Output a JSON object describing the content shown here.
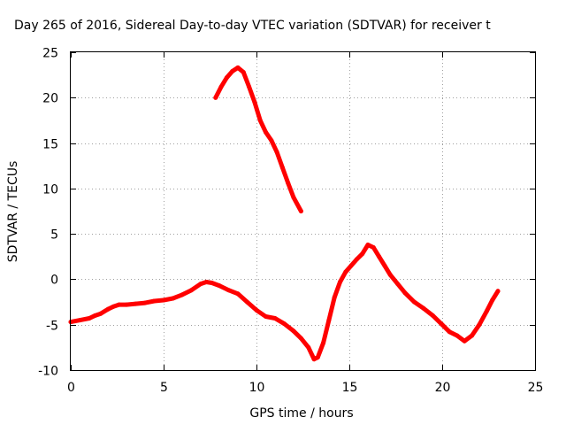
{
  "chart_data": {
    "type": "line",
    "title": "Day 265 of 2016, Sidereal Day-to-day VTEC variation (SDTVAR) for receiver t",
    "xlabel": "GPS time / hours",
    "ylabel": "SDTVAR / TECUs",
    "xlim": [
      0,
      25
    ],
    "ylim": [
      -10,
      25
    ],
    "x_ticks": [
      0,
      5,
      10,
      15,
      20,
      25
    ],
    "y_ticks": [
      -10,
      -5,
      0,
      5,
      10,
      15,
      20,
      25
    ],
    "x_tick_labels": [
      "0",
      "5",
      "10",
      "15",
      "20",
      "25"
    ],
    "y_tick_labels": [
      "-10",
      "-5",
      "0",
      "5",
      "10",
      "15",
      "20",
      "25"
    ],
    "grid": true,
    "color": "#ff0000",
    "series": [
      {
        "name": "main-track",
        "x": [
          0.0,
          0.5,
          1.0,
          1.3,
          1.6,
          2.0,
          2.3,
          2.6,
          3.0,
          3.5,
          4.0,
          4.5,
          5.0,
          5.5,
          6.0,
          6.5,
          7.0,
          7.3,
          7.6,
          8.0,
          8.5,
          9.0,
          9.5,
          10.0,
          10.5,
          11.0,
          11.5,
          12.0,
          12.4,
          12.8,
          13.1,
          13.3,
          13.6,
          13.9,
          14.2,
          14.5,
          14.8,
          15.1,
          15.4,
          15.7,
          16.0,
          16.3,
          16.6,
          16.9,
          17.2,
          17.6,
          18.0,
          18.5,
          19.0,
          19.5,
          20.0,
          20.4,
          20.8,
          21.2,
          21.6,
          22.0,
          22.4,
          22.7,
          23.0
        ],
        "y": [
          -4.7,
          -4.5,
          -4.3,
          -4.0,
          -3.8,
          -3.3,
          -3.0,
          -2.8,
          -2.8,
          -2.7,
          -2.6,
          -2.4,
          -2.3,
          -2.1,
          -1.7,
          -1.2,
          -0.5,
          -0.3,
          -0.4,
          -0.7,
          -1.2,
          -1.6,
          -2.5,
          -3.4,
          -4.1,
          -4.3,
          -4.9,
          -5.7,
          -6.5,
          -7.5,
          -8.8,
          -8.6,
          -7.0,
          -4.5,
          -2.0,
          -0.3,
          0.8,
          1.5,
          2.2,
          2.8,
          3.8,
          3.5,
          2.5,
          1.5,
          0.5,
          -0.5,
          -1.5,
          -2.5,
          -3.2,
          -4.0,
          -5.0,
          -5.8,
          -6.2,
          -6.8,
          -6.2,
          -5.0,
          -3.5,
          -2.3,
          -1.3
        ]
      },
      {
        "name": "upper-arc",
        "x": [
          7.8,
          8.1,
          8.4,
          8.7,
          9.0,
          9.3,
          9.6,
          9.9,
          10.2,
          10.5,
          10.8,
          11.1,
          11.4,
          11.7,
          12.0,
          12.4
        ],
        "y": [
          20.0,
          21.2,
          22.2,
          22.9,
          23.3,
          22.8,
          21.2,
          19.5,
          17.5,
          16.2,
          15.3,
          14.0,
          12.3,
          10.6,
          9.0,
          7.5
        ]
      }
    ]
  }
}
